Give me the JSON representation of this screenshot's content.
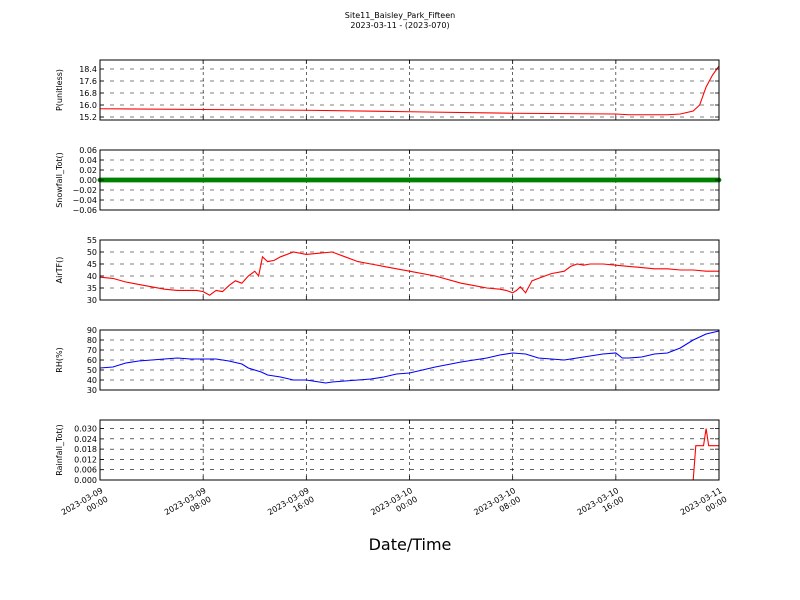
{
  "figure": {
    "title": "Site11_Baisley_Park_Fifteen",
    "subtitle": "2023-03-11 - (2023-070)",
    "xlabel": "Date/Time"
  },
  "chart_data": [
    {
      "type": "line",
      "ylabel": "P(unitless)",
      "ylim": [
        15.0,
        19.0
      ],
      "yticks": [
        15.2,
        16.0,
        16.8,
        17.6,
        18.4
      ],
      "ytick_labels": [
        "15.2",
        "16.0",
        "16.8",
        "17.6",
        "18.4"
      ],
      "color": "#ff0000",
      "grid": true,
      "x_hours": [
        0,
        8,
        16,
        24,
        32,
        40,
        41,
        42,
        44,
        45,
        46,
        46.5,
        47,
        47.5,
        48
      ],
      "y": [
        15.75,
        15.7,
        15.65,
        15.55,
        15.45,
        15.4,
        15.35,
        15.35,
        15.35,
        15.4,
        15.6,
        16.0,
        17.2,
        18.0,
        18.6
      ]
    },
    {
      "type": "scatter",
      "ylabel": "Snowfall_Tot()",
      "ylim": [
        -0.06,
        0.06
      ],
      "yticks": [
        -0.06,
        -0.04,
        -0.02,
        0.0,
        0.02,
        0.04,
        0.06
      ],
      "ytick_labels": [
        "−0.06",
        "−0.04",
        "−0.02",
        "0.00",
        "0.02",
        "0.04",
        "0.06"
      ],
      "color": "#008000",
      "grid": true,
      "constant_value": 0.0
    },
    {
      "type": "line",
      "ylabel": "AirTF()",
      "ylim": [
        30,
        55
      ],
      "yticks": [
        30,
        35,
        40,
        45,
        50,
        55
      ],
      "ytick_labels": [
        "30",
        "35",
        "40",
        "45",
        "50",
        "55"
      ],
      "color": "#ff0000",
      "grid": true,
      "x_hours": [
        0,
        1,
        2,
        3,
        4,
        5,
        6,
        7,
        7.5,
        8,
        8.5,
        9,
        9.5,
        10,
        10.5,
        11,
        11.5,
        12,
        12.3,
        12.6,
        13,
        13.5,
        14,
        15,
        16,
        17,
        18,
        19,
        20,
        21,
        22,
        24,
        26,
        28,
        29,
        30,
        31,
        31.5,
        32,
        32.3,
        32.6,
        33,
        33.5,
        34,
        35,
        36,
        36.5,
        37,
        37.5,
        38,
        39,
        40,
        41,
        42,
        43,
        44,
        45,
        46,
        47,
        48
      ],
      "y": [
        39.5,
        39,
        37.5,
        36.5,
        35.5,
        34.5,
        34,
        34,
        34,
        33.5,
        32,
        34,
        33.5,
        36,
        38,
        37,
        40,
        42,
        40,
        48,
        46,
        46.5,
        48,
        50,
        49,
        49.5,
        50,
        48,
        46,
        45,
        44,
        42,
        40,
        37,
        36,
        35,
        34.5,
        34,
        33,
        34,
        35.5,
        33,
        38,
        39,
        41,
        42,
        44,
        45,
        44.5,
        45,
        45,
        44.5,
        44,
        43.5,
        43,
        43,
        42.5,
        42.5,
        42,
        42
      ]
    },
    {
      "type": "line",
      "ylabel": "RH(%)",
      "ylim": [
        30,
        90
      ],
      "yticks": [
        30,
        40,
        50,
        60,
        70,
        80,
        90
      ],
      "ytick_labels": [
        "30",
        "40",
        "50",
        "60",
        "70",
        "80",
        "90"
      ],
      "color": "#0000ff",
      "grid": true,
      "x_hours": [
        0,
        1,
        2,
        3,
        4,
        5,
        6,
        7,
        8,
        9,
        10,
        11,
        11.5,
        12,
        12.5,
        13,
        13.5,
        14,
        15,
        16,
        17,
        17.5,
        18,
        19,
        20,
        21,
        22,
        23,
        24,
        26,
        28,
        30,
        31,
        32,
        33,
        34,
        35,
        36,
        37,
        38,
        39,
        40,
        40.5,
        41,
        42,
        43,
        44,
        45,
        46,
        47,
        48
      ],
      "y": [
        52,
        53,
        57,
        59,
        60,
        61,
        62,
        61,
        61,
        61,
        59,
        56,
        52,
        50,
        48,
        45,
        44,
        43,
        40,
        40,
        38,
        37,
        38,
        39,
        40,
        41,
        43,
        46,
        47,
        53,
        58,
        62,
        65,
        67,
        66,
        62,
        61,
        60,
        62,
        64,
        66,
        67,
        62,
        62,
        63,
        66,
        67,
        72,
        80,
        86,
        89
      ]
    },
    {
      "type": "line",
      "ylabel": "Rainfall_Tot()",
      "ylim": [
        0.0,
        0.035
      ],
      "yticks": [
        0.0,
        0.006,
        0.012,
        0.018,
        0.024,
        0.03
      ],
      "ytick_labels": [
        "0.000",
        "0.006",
        "0.012",
        "0.018",
        "0.024",
        "0.030"
      ],
      "color": "#ff0000",
      "grid": true,
      "x_hours": [
        0,
        46,
        46.2,
        46.5,
        46.8,
        47.0,
        47.2,
        47.5,
        48
      ],
      "y": [
        0,
        0,
        0.02,
        0.02,
        0.02,
        0.03,
        0.02,
        0.02,
        0.02
      ]
    }
  ],
  "x_axis": {
    "ticks_hours": [
      0,
      8,
      16,
      24,
      32,
      40,
      48
    ],
    "tick_labels": [
      [
        "2023-03-09",
        "00:00"
      ],
      [
        "2023-03-09",
        "08:00"
      ],
      [
        "2023-03-09",
        "16:00"
      ],
      [
        "2023-03-10",
        "00:00"
      ],
      [
        "2023-03-10",
        "08:00"
      ],
      [
        "2023-03-10",
        "16:00"
      ],
      [
        "2023-03-11",
        "00:00"
      ]
    ]
  }
}
